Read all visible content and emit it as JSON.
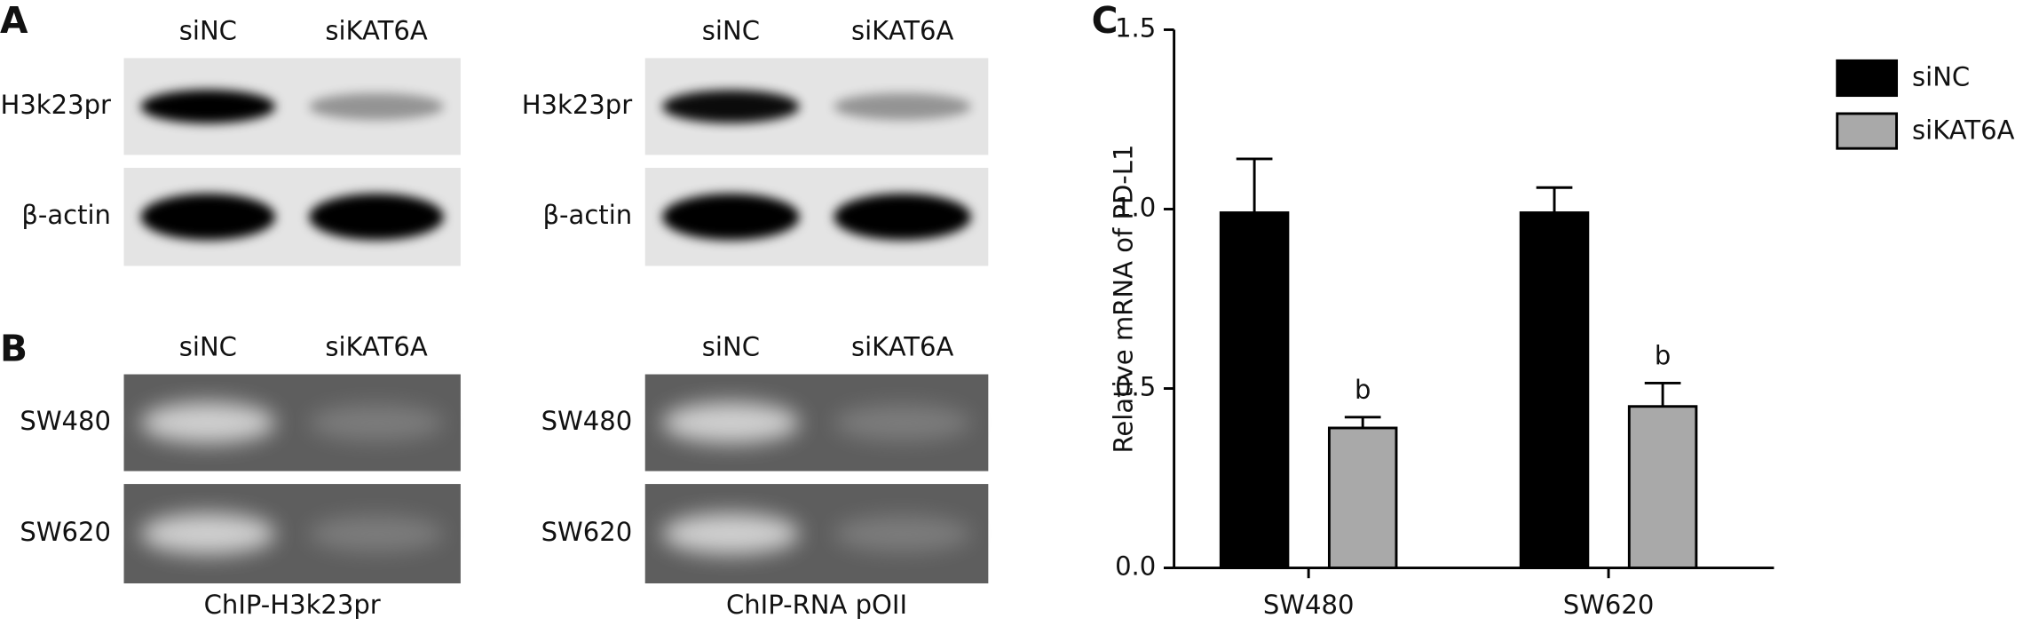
{
  "panel_a": {
    "label": "A",
    "blots": [
      {
        "columns": [
          "siNC",
          "siKAT6A"
        ],
        "rows": [
          "H3k23pr",
          "β-actin"
        ]
      },
      {
        "columns": [
          "siNC",
          "siKAT6A"
        ],
        "rows": [
          "H3k23pr",
          "β-actin"
        ]
      }
    ]
  },
  "panel_b": {
    "label": "B",
    "gels": [
      {
        "columns": [
          "siNC",
          "siKAT6A"
        ],
        "rows": [
          "SW480",
          "SW620"
        ],
        "caption": "ChIP-H3k23pr"
      },
      {
        "columns": [
          "siNC",
          "siKAT6A"
        ],
        "rows": [
          "SW480",
          "SW620"
        ],
        "caption": "ChIP-RNA pOII"
      }
    ]
  },
  "chart_data": {
    "type": "bar",
    "panel_label": "C",
    "ylabel": "Relative mRNA of PD-L1",
    "categories": [
      "SW480",
      "SW620"
    ],
    "series": [
      {
        "name": "siNC",
        "color": "#000000",
        "values": [
          0.99,
          0.99
        ],
        "errors": [
          0.15,
          0.07
        ]
      },
      {
        "name": "siKAT6A",
        "color": "#a9a9a9",
        "values": [
          0.39,
          0.45
        ],
        "errors": [
          0.03,
          0.065
        ],
        "annotations": [
          "b",
          "b"
        ]
      }
    ],
    "ylim": [
      0,
      1.5
    ],
    "yticks": [
      {
        "value": 0,
        "label": "0.0"
      },
      0.5,
      {
        "value": 1,
        "label": "1.0"
      },
      1.5
    ]
  }
}
